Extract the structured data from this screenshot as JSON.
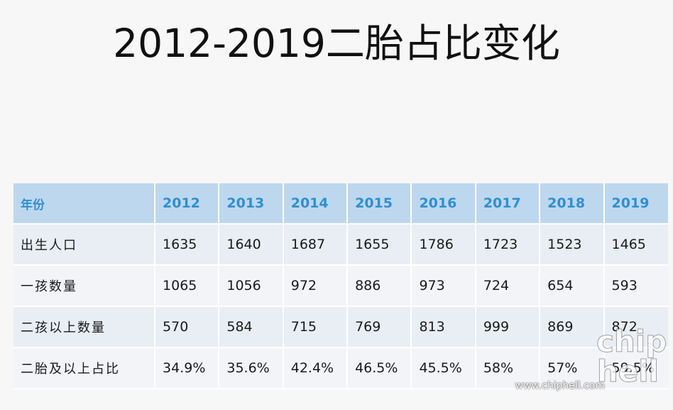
{
  "slide": {
    "title": "2012-2019二胎占比变化"
  },
  "table": {
    "header_label": "年份",
    "years": [
      "2012",
      "2013",
      "2014",
      "2015",
      "2016",
      "2017",
      "2018",
      "2019"
    ],
    "rows": [
      {
        "label": "出生人口",
        "values": [
          "1635",
          "1640",
          "1687",
          "1655",
          "1786",
          "1723",
          "1523",
          "1465"
        ]
      },
      {
        "label": "一孩数量",
        "values": [
          "1065",
          "1056",
          "972",
          "886",
          "973",
          "724",
          "654",
          "593"
        ]
      },
      {
        "label": "二孩以上数量",
        "values": [
          "570",
          "584",
          "715",
          "769",
          "813",
          "999",
          "869",
          "872"
        ]
      },
      {
        "label": "二胎及以上占比",
        "values": [
          "34.9%",
          "35.6%",
          "42.4%",
          "46.5%",
          "45.5%",
          "58%",
          "57%",
          "59.5%"
        ]
      }
    ]
  },
  "watermark": {
    "line1": "chip",
    "line2": "hell",
    "url": "www.chiphell.com"
  },
  "colors": {
    "header_bg": "#bdd7ee",
    "header_text": "#2f8fd1",
    "row_odd_bg": "#e9edf4",
    "row_even_bg": "#f2f4f8"
  }
}
